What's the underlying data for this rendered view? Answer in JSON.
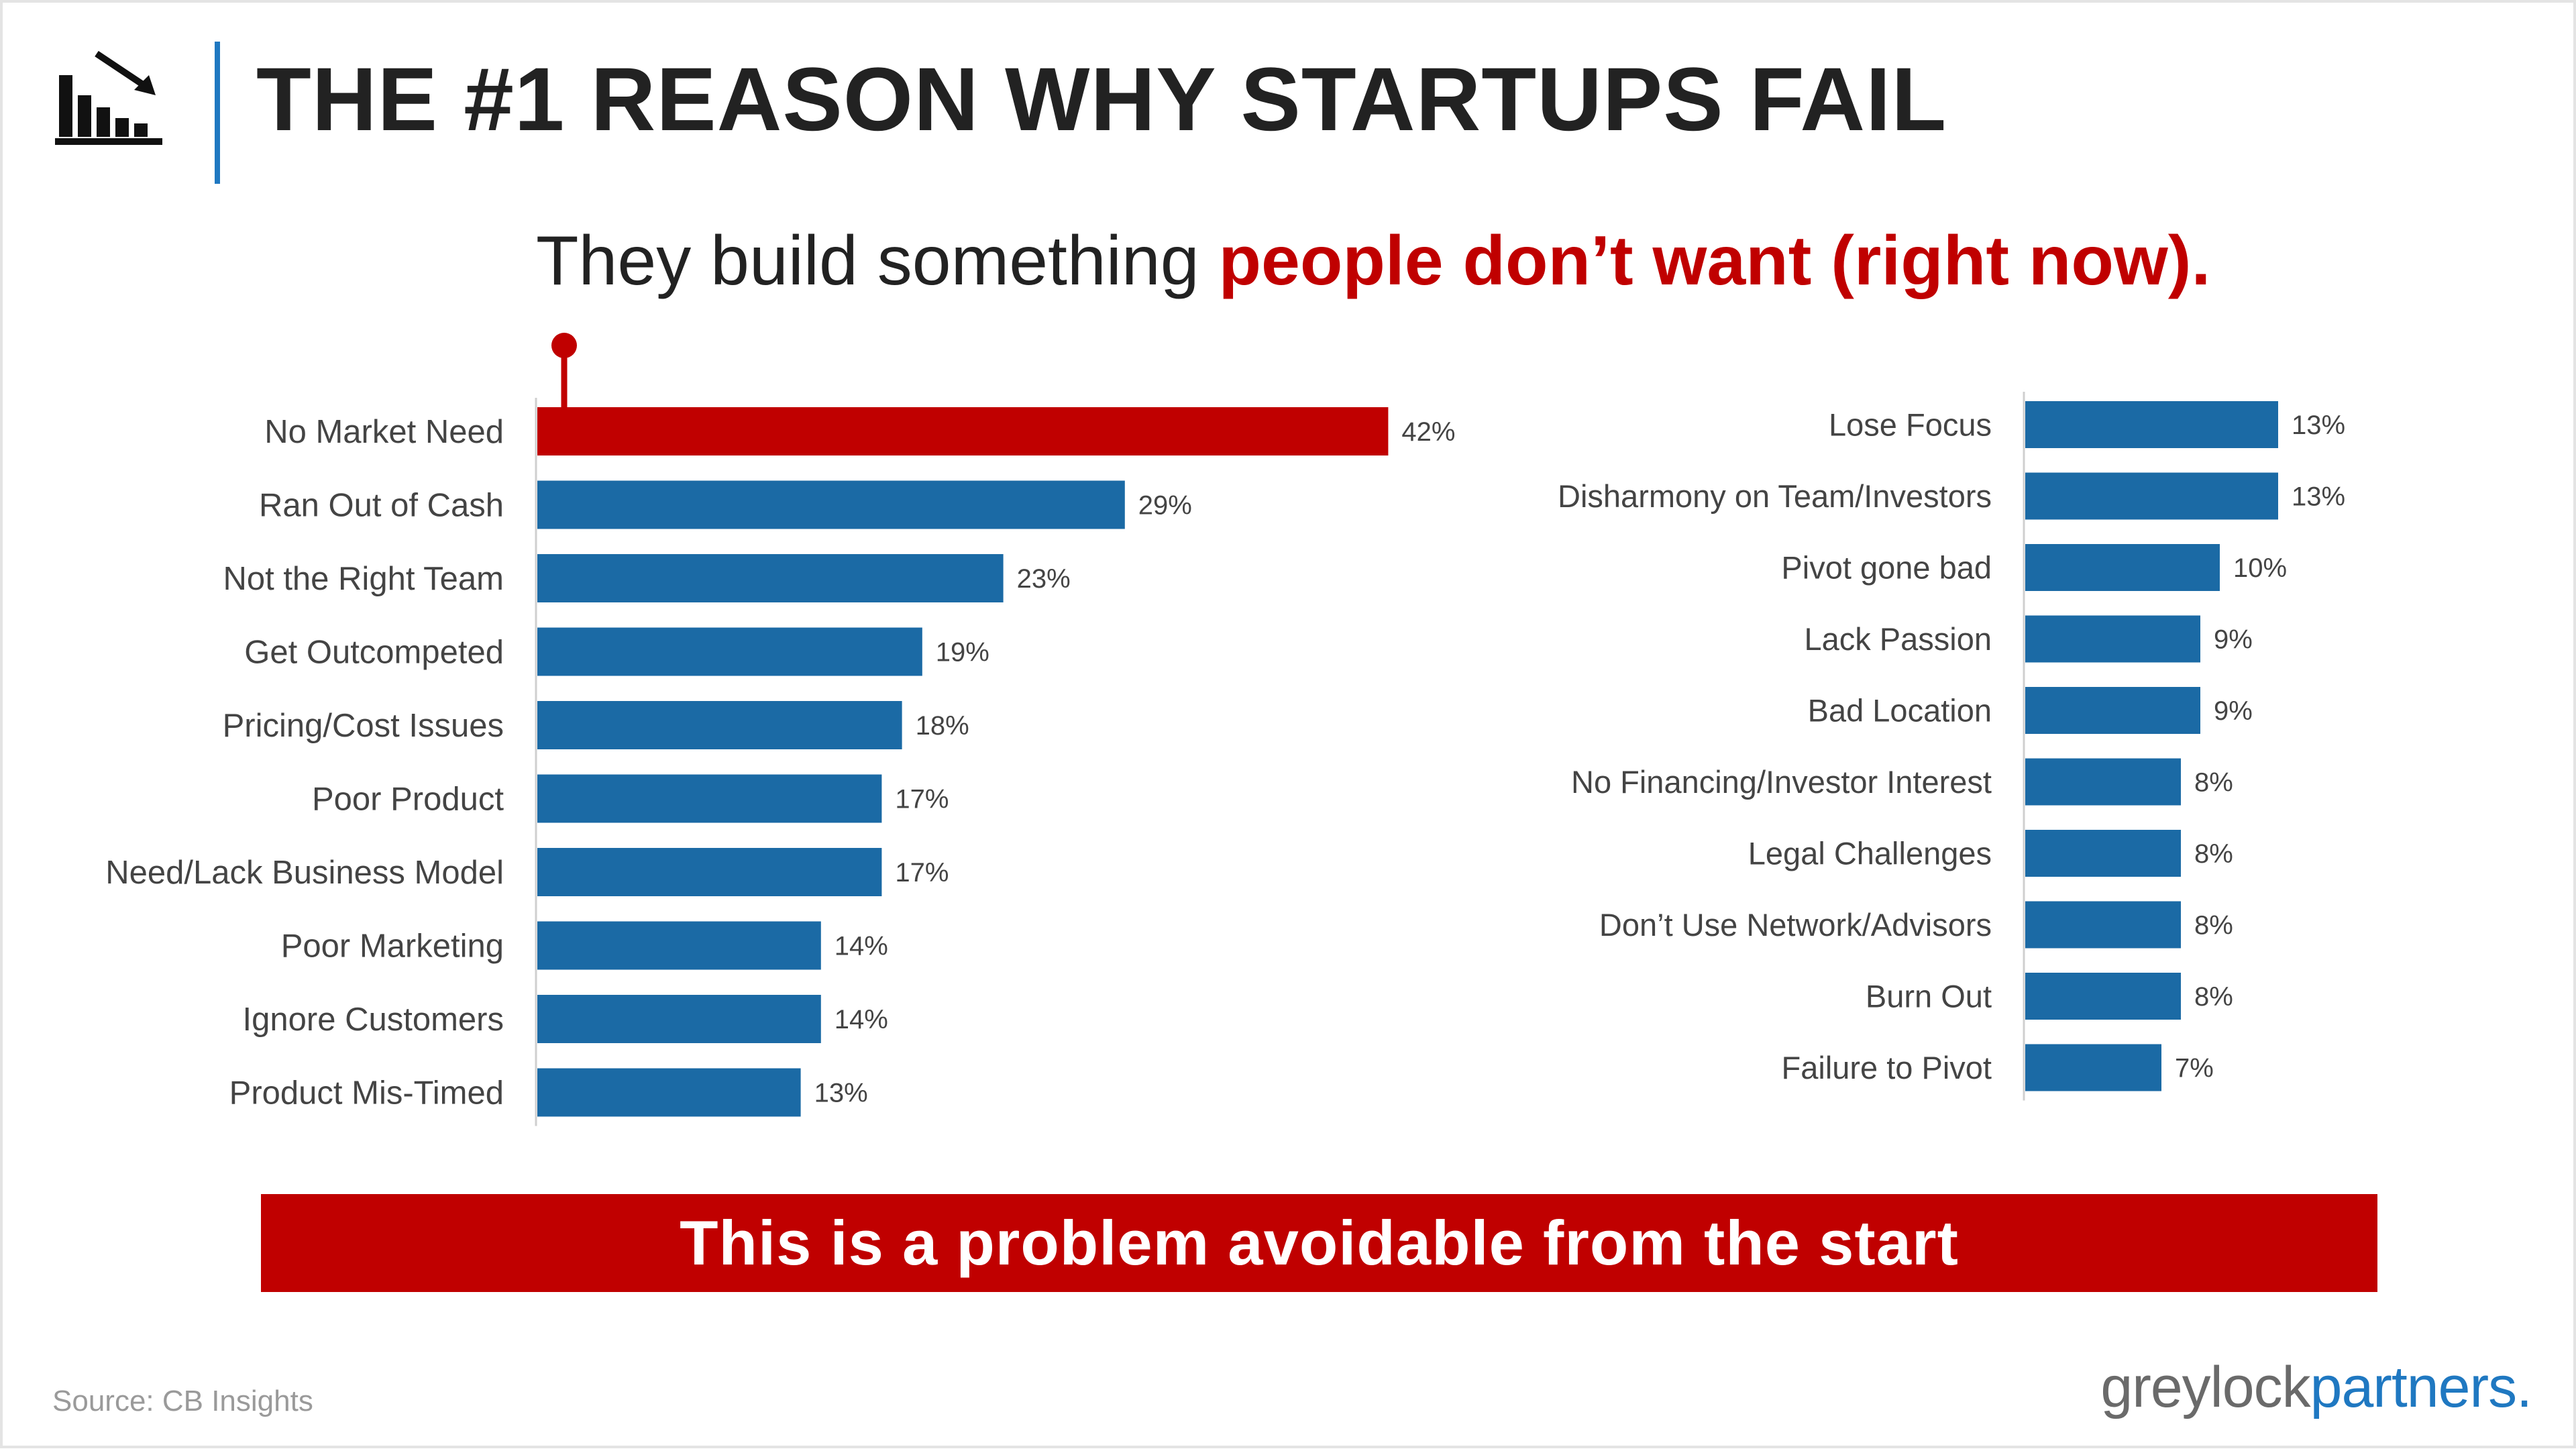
{
  "header": {
    "title": "THE #1 REASON WHY STARTUPS FAIL",
    "icon": "declining-bar-chart-icon"
  },
  "subtitle": {
    "plain": "They build something ",
    "emphasis": "people don’t want (right now)."
  },
  "banner": {
    "text": "This is a problem avoidable from the start"
  },
  "footer": {
    "source": "Source: CB Insights",
    "brand_part1": "greylock",
    "brand_part2": "partners."
  },
  "colors": {
    "highlight": "#c00000",
    "bar": "#1b6aa5",
    "text": "#222222",
    "label": "#444444",
    "brand_blue": "#1f78c1"
  },
  "chart_data": [
    {
      "type": "bar",
      "orientation": "horizontal",
      "categories": [
        "No Market Need",
        "Ran Out of Cash",
        "Not the Right Team",
        "Get Outcompeted",
        "Pricing/Cost Issues",
        "Poor Product",
        "Need/Lack Business Model",
        "Poor Marketing",
        "Ignore Customers",
        "Product Mis-Timed"
      ],
      "values": [
        42,
        29,
        23,
        19,
        18,
        17,
        17,
        14,
        14,
        13
      ],
      "labels": [
        "42%",
        "29%",
        "23%",
        "19%",
        "18%",
        "17%",
        "17%",
        "14%",
        "14%",
        "13%"
      ],
      "highlight_index": 0,
      "xlim": [
        0,
        100
      ],
      "grid": false,
      "legend": "none"
    },
    {
      "type": "bar",
      "orientation": "horizontal",
      "categories": [
        "Lose Focus",
        "Disharmony on Team/Investors",
        "Pivot gone bad",
        "Lack Passion",
        "Bad Location",
        "No Financing/Investor Interest",
        "Legal Challenges",
        "Don’t Use Network/Advisors",
        "Burn Out",
        "Failure to Pivot"
      ],
      "values": [
        13,
        13,
        10,
        9,
        9,
        8,
        8,
        8,
        8,
        7
      ],
      "labels": [
        "13%",
        "13%",
        "10%",
        "9%",
        "9%",
        "8%",
        "8%",
        "8%",
        "8%",
        "7%"
      ],
      "xlim": [
        0,
        100
      ],
      "grid": false,
      "legend": "none"
    }
  ]
}
